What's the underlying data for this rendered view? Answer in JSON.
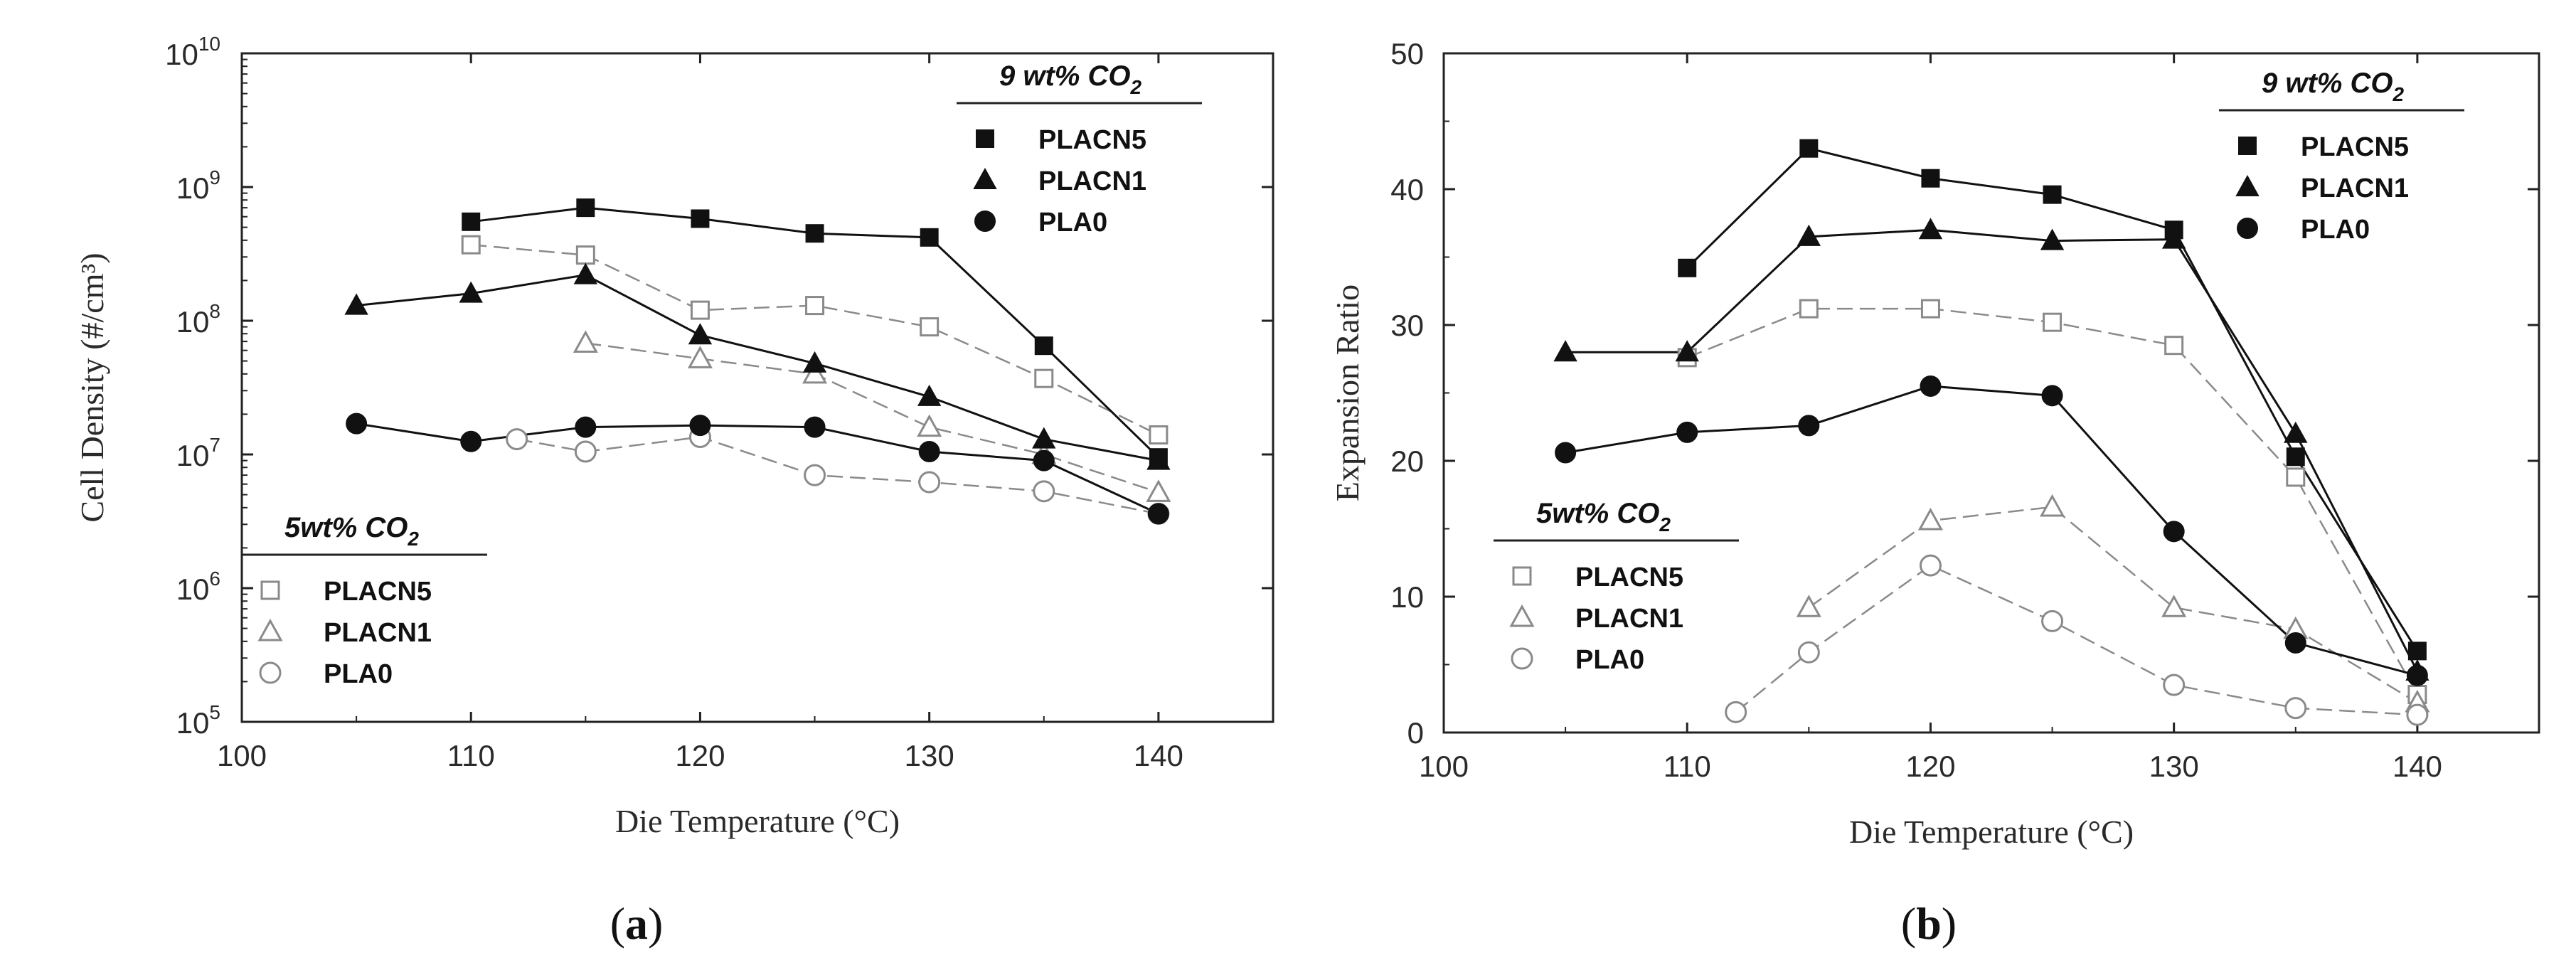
{
  "figure": {
    "panels": [
      {
        "label_open": "(",
        "label_letter": "a",
        "label_close": ")"
      },
      {
        "label_open": "(",
        "label_letter": "b",
        "label_close": ")"
      }
    ]
  },
  "chart_data": [
    {
      "type": "line",
      "yscale": "log",
      "xlabel": "Die Temperature (°C)",
      "ylabel": "Cell Density (#/cm³)",
      "xlim": [
        100,
        145
      ],
      "ylim": [
        100000,
        10000000000
      ],
      "xticks": [
        100,
        110,
        120,
        130,
        140
      ],
      "yticks": [
        {
          "base": "10",
          "exp": "5"
        },
        {
          "base": "10",
          "exp": "6"
        },
        {
          "base": "10",
          "exp": "7"
        },
        {
          "base": "10",
          "exp": "8"
        },
        {
          "base": "10",
          "exp": "9"
        },
        {
          "base": "10",
          "exp": "10"
        }
      ],
      "legends": [
        {
          "title": "9 wt% CO",
          "title_sub": "2",
          "position": "top-right",
          "entries": [
            "PLACN5",
            "PLACN1",
            "PLA0"
          ]
        },
        {
          "title": "5wt% CO",
          "title_sub": "2",
          "position": "bottom-left",
          "entries": [
            "PLACN5",
            "PLACN1",
            "PLA0"
          ]
        }
      ],
      "series": [
        {
          "name": "PLACN5",
          "group": "9 wt% CO2",
          "marker": "square",
          "filled": true,
          "dashed": false,
          "x": [
            110,
            115,
            120,
            125,
            130,
            135,
            140
          ],
          "y": [
            550000000,
            700000000,
            580000000,
            450000000,
            420000000,
            65000000,
            9500000
          ]
        },
        {
          "name": "PLACN1",
          "group": "9 wt% CO2",
          "marker": "triangle",
          "filled": true,
          "dashed": false,
          "x": [
            105,
            110,
            115,
            120,
            125,
            130,
            135,
            140
          ],
          "y": [
            130000000,
            160000000,
            220000000,
            78000000,
            48000000,
            27000000,
            13000000,
            9000000
          ]
        },
        {
          "name": "PLA0",
          "group": "9 wt% CO2",
          "marker": "circle",
          "filled": true,
          "dashed": false,
          "x": [
            105,
            110,
            115,
            120,
            125,
            130,
            135,
            140
          ],
          "y": [
            17000000,
            12500000,
            16000000,
            16500000,
            16000000,
            10500000,
            9000000,
            3600000
          ]
        },
        {
          "name": "PLACN5",
          "group": "5wt% CO2",
          "marker": "square",
          "filled": false,
          "dashed": true,
          "x": [
            110,
            115,
            120,
            125,
            130,
            135,
            140
          ],
          "y": [
            370000000,
            310000000,
            120000000,
            130000000,
            90000000,
            37000000,
            14000000
          ]
        },
        {
          "name": "PLACN1",
          "group": "5wt% CO2",
          "marker": "triangle",
          "filled": false,
          "dashed": true,
          "x": [
            115,
            120,
            125,
            130,
            135,
            140
          ],
          "y": [
            68000000,
            52000000,
            40000000,
            16000000,
            10000000,
            5200000
          ]
        },
        {
          "name": "PLA0",
          "group": "5wt% CO2",
          "marker": "circle",
          "filled": false,
          "dashed": true,
          "x": [
            112,
            115,
            120,
            125,
            130,
            135,
            140
          ],
          "y": [
            13000000,
            10500000,
            13500000,
            7000000,
            6200000,
            5300000,
            3600000
          ]
        }
      ]
    },
    {
      "type": "line",
      "yscale": "linear",
      "xlabel": "Die Temperature (°C)",
      "ylabel": "Expansion Ratio",
      "xlim": [
        100,
        145
      ],
      "ylim": [
        0,
        50
      ],
      "xticks": [
        100,
        110,
        120,
        130,
        140
      ],
      "yticks": [
        0,
        10,
        20,
        30,
        40,
        50
      ],
      "legends": [
        {
          "title": "9 wt% CO",
          "title_sub": "2",
          "position": "top-right",
          "entries": [
            "PLACN5",
            "PLACN1",
            "PLA0"
          ]
        },
        {
          "title": "5wt% CO",
          "title_sub": "2",
          "position": "bottom-left",
          "entries": [
            "PLACN5",
            "PLACN1",
            "PLA0"
          ]
        }
      ],
      "series": [
        {
          "name": "PLACN5",
          "group": "9 wt% CO2",
          "marker": "square",
          "filled": true,
          "dashed": false,
          "x": [
            110,
            115,
            120,
            125,
            130,
            135,
            140
          ],
          "y": [
            34.2,
            43.0,
            40.8,
            39.6,
            37.0,
            20.3,
            6.0
          ]
        },
        {
          "name": "PLACN1",
          "group": "9 wt% CO2",
          "marker": "triangle",
          "filled": true,
          "dashed": false,
          "x": [
            105,
            110,
            115,
            120,
            125,
            130,
            135,
            140
          ],
          "y": [
            28.0,
            28.0,
            36.5,
            37.0,
            36.2,
            36.3,
            22.0,
            4.5
          ]
        },
        {
          "name": "PLA0",
          "group": "9 wt% CO2",
          "marker": "circle",
          "filled": true,
          "dashed": false,
          "x": [
            105,
            110,
            115,
            120,
            125,
            130,
            135,
            140
          ],
          "y": [
            20.6,
            22.1,
            22.6,
            25.5,
            24.8,
            14.8,
            6.6,
            4.2
          ]
        },
        {
          "name": "PLACN5",
          "group": "5wt% CO2",
          "marker": "square",
          "filled": false,
          "dashed": true,
          "x": [
            110,
            115,
            120,
            125,
            130,
            135,
            140
          ],
          "y": [
            27.6,
            31.2,
            31.2,
            30.2,
            28.5,
            18.8,
            2.8
          ]
        },
        {
          "name": "PLACN1",
          "group": "5wt% CO2",
          "marker": "triangle",
          "filled": false,
          "dashed": true,
          "x": [
            115,
            120,
            125,
            130,
            135,
            140
          ],
          "y": [
            9.2,
            15.6,
            16.6,
            9.2,
            7.6,
            2.2
          ]
        },
        {
          "name": "PLA0",
          "group": "5wt% CO2",
          "marker": "circle",
          "filled": false,
          "dashed": true,
          "x": [
            112,
            115,
            120,
            125,
            130,
            135,
            140
          ],
          "y": [
            1.5,
            5.9,
            12.3,
            8.2,
            3.5,
            1.8,
            1.3
          ]
        }
      ]
    }
  ]
}
